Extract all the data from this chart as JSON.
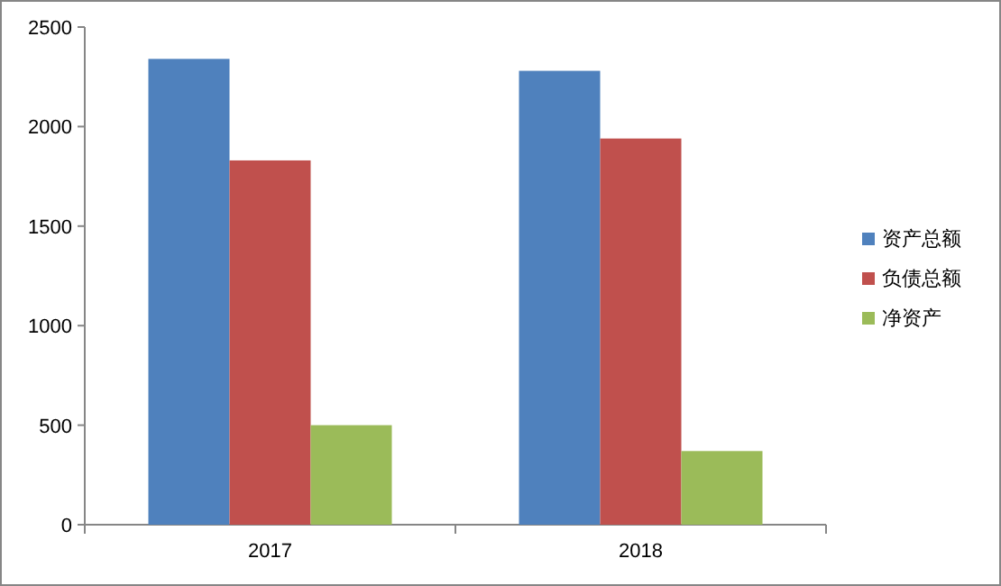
{
  "chart_data": {
    "type": "bar",
    "categories": [
      "2017",
      "2018"
    ],
    "series": [
      {
        "name": "资产总额",
        "color": "#4f81bd",
        "values": [
          2340,
          2280
        ]
      },
      {
        "name": "负债总额",
        "color": "#c0504d",
        "values": [
          1830,
          1940
        ]
      },
      {
        "name": "净资产",
        "color": "#9bbb59",
        "values": [
          500,
          370
        ]
      }
    ],
    "ylim": [
      0,
      2500
    ],
    "yticks": [
      0,
      500,
      1000,
      1500,
      2000,
      2500
    ],
    "grid": false,
    "legend": "right"
  }
}
